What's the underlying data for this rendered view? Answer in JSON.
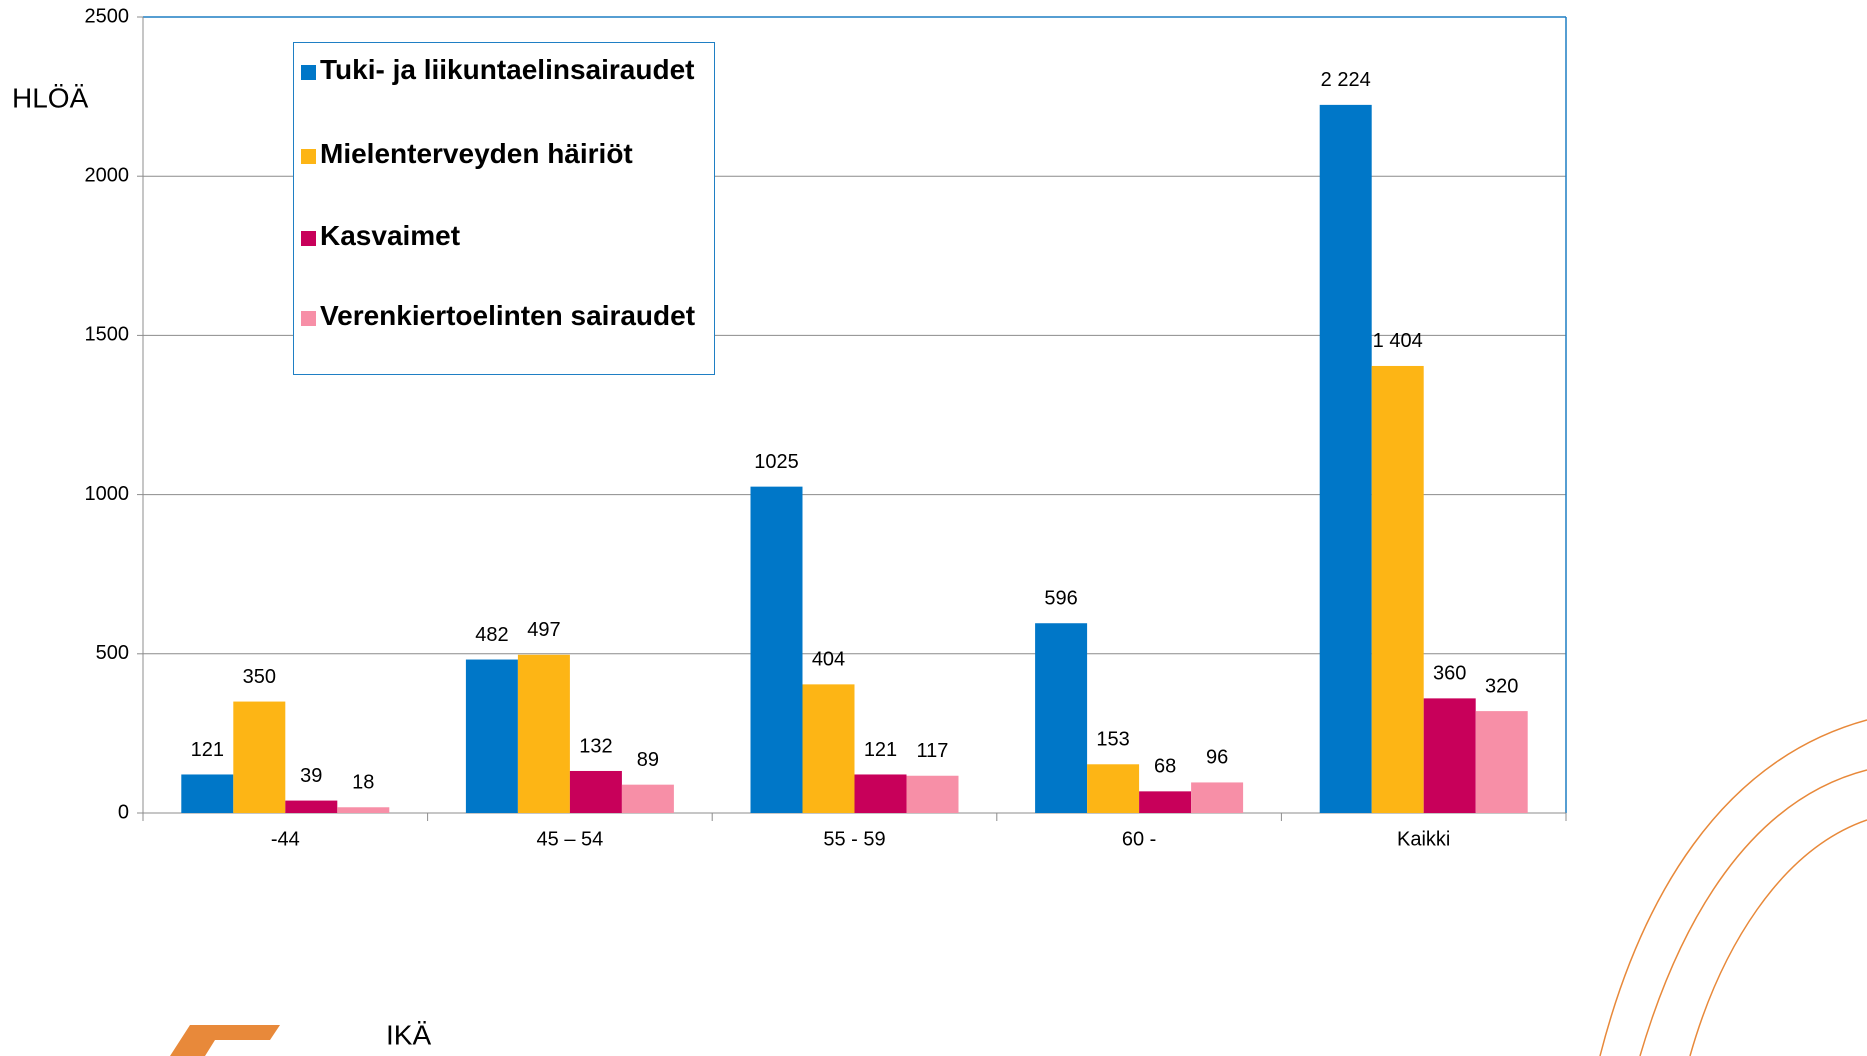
{
  "chart_data": {
    "type": "bar",
    "y_axis_label": "HLÖÄ",
    "x_axis_label": "IKÄ",
    "categories": [
      "-44",
      "45 – 54",
      "55 - 59",
      "60 -",
      "Kaikki"
    ],
    "series": [
      {
        "name": "Tuki- ja liikuntaelinsairaudet",
        "color": "#0077c8",
        "values": [
          121,
          482,
          1025,
          596,
          2224
        ],
        "value_labels": [
          "121",
          "482",
          "1025",
          "596",
          "2 224"
        ]
      },
      {
        "name": "Mielenterveyden häiriöt",
        "color": "#fdb515",
        "values": [
          350,
          497,
          404,
          153,
          1404
        ],
        "value_labels": [
          "350",
          "497",
          "404",
          "153",
          "1 404"
        ]
      },
      {
        "name": "Kasvaimet",
        "color": "#c8005a",
        "values": [
          39,
          132,
          121,
          68,
          360
        ]
      },
      {
        "name": "Verenkiertoelinten sairaudet",
        "color": "#f78fa7",
        "values": [
          18,
          89,
          117,
          96,
          320
        ]
      }
    ],
    "ylim": [
      0,
      2500
    ],
    "yticks": [
      0,
      500,
      1000,
      1500,
      2000,
      2500
    ],
    "grid": true
  }
}
